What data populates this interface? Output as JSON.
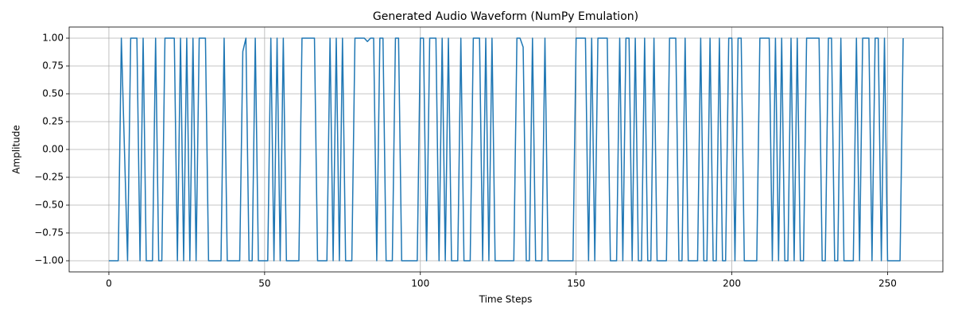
{
  "chart_data": {
    "type": "line",
    "title": "Generated Audio Waveform (NumPy Emulation)",
    "x_label": "Time Steps",
    "y_label": "Amplitude",
    "x": [
      0,
      1,
      2,
      3,
      4,
      5,
      6,
      7,
      8,
      9,
      10,
      11,
      12,
      13,
      14,
      15,
      16,
      17,
      18,
      19,
      20,
      21,
      22,
      23,
      24,
      25,
      26,
      27,
      28,
      29,
      30,
      31,
      32,
      33,
      34,
      35,
      36,
      37,
      38,
      39,
      40,
      41,
      42,
      43,
      44,
      45,
      46,
      47,
      48,
      49,
      50,
      51,
      52,
      53,
      54,
      55,
      56,
      57,
      58,
      59,
      60,
      61,
      62,
      63,
      64,
      65,
      66,
      67,
      68,
      69,
      70,
      71,
      72,
      73,
      74,
      75,
      76,
      77,
      78,
      79,
      80,
      81,
      82,
      83,
      84,
      85,
      86,
      87,
      88,
      89,
      90,
      91,
      92,
      93,
      94,
      95,
      96,
      97,
      98,
      99,
      100,
      101,
      102,
      103,
      104,
      105,
      106,
      107,
      108,
      109,
      110,
      111,
      112,
      113,
      114,
      115,
      116,
      117,
      118,
      119,
      120,
      121,
      122,
      123,
      124,
      125,
      126,
      127,
      128,
      129,
      130,
      131,
      132,
      133,
      134,
      135,
      136,
      137,
      138,
      139,
      140,
      141,
      142,
      143,
      144,
      145,
      146,
      147,
      148,
      149,
      150,
      151,
      152,
      153,
      154,
      155,
      156,
      157,
      158,
      159,
      160,
      161,
      162,
      163,
      164,
      165,
      166,
      167,
      168,
      169,
      170,
      171,
      172,
      173,
      174,
      175,
      176,
      177,
      178,
      179,
      180,
      181,
      182,
      183,
      184,
      185,
      186,
      187,
      188,
      189,
      190,
      191,
      192,
      193,
      194,
      195,
      196,
      197,
      198,
      199,
      200,
      201,
      202,
      203,
      204,
      205,
      206,
      207,
      208,
      209,
      210,
      211,
      212,
      213,
      214,
      215,
      216,
      217,
      218,
      219,
      220,
      221,
      222,
      223,
      224,
      225,
      226,
      227,
      228,
      229,
      230,
      231,
      232,
      233,
      234,
      235,
      236,
      237,
      238,
      239,
      240,
      241,
      242,
      243,
      244,
      245,
      246,
      247,
      248,
      249,
      250,
      251,
      252,
      253,
      254,
      255
    ],
    "series": [
      {
        "color": "#1f77b4",
        "values": [
          -1,
          -1,
          -1,
          -1,
          1,
          0,
          -1,
          1,
          1,
          1,
          -1,
          1,
          -1,
          -1,
          -1,
          1,
          -1,
          -1,
          1,
          1,
          1,
          1,
          -1,
          1,
          -1,
          1,
          -1,
          1,
          -1,
          1,
          1,
          1,
          -1,
          -1,
          -1,
          -1,
          -1,
          1,
          -1,
          -1,
          -1,
          -1,
          -1,
          0.88,
          1,
          -1,
          -1,
          1,
          -1,
          -1,
          -1,
          -1,
          1,
          -1,
          1,
          -1,
          1,
          -1,
          -1,
          -1,
          -1,
          -1,
          1,
          1,
          1,
          1,
          1,
          -1,
          -1,
          -1,
          -1,
          1,
          -1,
          1,
          -1,
          1,
          -1,
          -1,
          -1,
          1,
          1,
          1,
          1,
          0.97,
          1,
          1,
          -1,
          1,
          1,
          -1,
          -1,
          -1,
          1,
          1,
          -1,
          -1,
          -1,
          -1,
          -1,
          -1,
          1,
          1,
          -1,
          1,
          1,
          1,
          -1,
          1,
          -1,
          1,
          -1,
          -1,
          -1,
          1,
          -1,
          -1,
          -1,
          1,
          1,
          1,
          -1,
          1,
          -1,
          1,
          -1,
          -1,
          -1,
          -1,
          -1,
          -1,
          -1,
          1,
          1,
          0.92,
          -1,
          -1,
          1,
          -1,
          -1,
          -1,
          1,
          -1,
          -1,
          -1,
          -1,
          -1,
          -1,
          -1,
          -1,
          -1,
          1,
          1,
          1,
          1,
          -1,
          1,
          -1,
          1,
          1,
          1,
          1,
          -1,
          -1,
          -1,
          1,
          -1,
          1,
          1,
          -1,
          1,
          -1,
          -1,
          1,
          -1,
          -1,
          1,
          -1,
          -1,
          -1,
          -1,
          1,
          1,
          1,
          -1,
          -1,
          1,
          -1,
          -1,
          -1,
          -1,
          1,
          -1,
          -1,
          1,
          -1,
          -1,
          1,
          -1,
          -1,
          1,
          1,
          -1,
          1,
          1,
          -1,
          -1,
          -1,
          -1,
          -1,
          1,
          1,
          1,
          1,
          -1,
          1,
          -1,
          1,
          -1,
          -1,
          1,
          -1,
          1,
          -1,
          -1,
          1,
          1,
          1,
          1,
          1,
          -1,
          -1,
          1,
          1,
          -1,
          -1,
          1,
          -1,
          -1,
          -1,
          -1,
          1,
          -1,
          1,
          1,
          1,
          -1,
          1,
          1,
          -1,
          1,
          -1,
          -1,
          -1,
          -1,
          -1,
          1
        ]
      }
    ],
    "xlim": [
      -12.75,
      267.75
    ],
    "xticks": [
      0,
      50,
      100,
      150,
      200,
      250
    ],
    "ylim": [
      -1.1,
      1.1
    ],
    "yticks": [
      {
        "value": -1,
        "label": "−1.00"
      },
      {
        "value": -0.75,
        "label": "−0.75"
      },
      {
        "value": -0.5,
        "label": "−0.50"
      },
      {
        "value": -0.25,
        "label": "−0.25"
      },
      {
        "value": 0,
        "label": "0.00"
      },
      {
        "value": 0.25,
        "label": "0.25"
      },
      {
        "value": 0.5,
        "label": "0.50"
      },
      {
        "value": 0.75,
        "label": "0.75"
      },
      {
        "value": 1,
        "label": "1.00"
      }
    ],
    "grid": true
  }
}
